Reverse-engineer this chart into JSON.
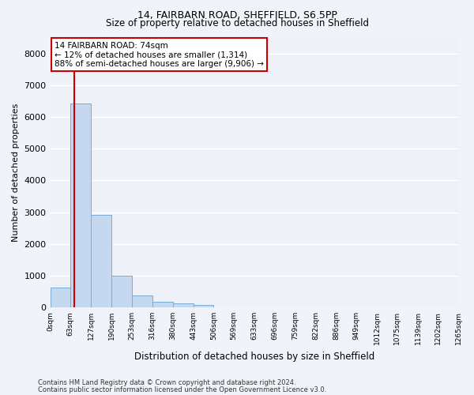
{
  "title1": "14, FAIRBARN ROAD, SHEFFIELD, S6 5PP",
  "title2": "Size of property relative to detached houses in Sheffield",
  "xlabel": "Distribution of detached houses by size in Sheffield",
  "ylabel": "Number of detached properties",
  "bin_labels": [
    "0sqm",
    "63sqm",
    "127sqm",
    "190sqm",
    "253sqm",
    "316sqm",
    "380sqm",
    "443sqm",
    "506sqm",
    "569sqm",
    "633sqm",
    "696sqm",
    "759sqm",
    "822sqm",
    "886sqm",
    "949sqm",
    "1012sqm",
    "1075sqm",
    "1139sqm",
    "1202sqm",
    "1265sqm"
  ],
  "bar_values": [
    620,
    6420,
    2920,
    1010,
    370,
    175,
    120,
    90,
    0,
    0,
    0,
    0,
    0,
    0,
    0,
    0,
    0,
    0,
    0,
    0
  ],
  "bar_color": "#c5d8f0",
  "bar_edge_color": "#7aadd4",
  "property_line_x": 74,
  "annotation_text": "14 FAIRBARN ROAD: 74sqm\n← 12% of detached houses are smaller (1,314)\n88% of semi-detached houses are larger (9,906) →",
  "footnote1": "Contains HM Land Registry data © Crown copyright and database right 2024.",
  "footnote2": "Contains public sector information licensed under the Open Government Licence v3.0.",
  "ylim": [
    0,
    8500
  ],
  "yticks": [
    0,
    1000,
    2000,
    3000,
    4000,
    5000,
    6000,
    7000,
    8000
  ],
  "background_color": "#f0f4fa",
  "plot_bg_color": "#eef2f8",
  "grid_color": "#ffffff",
  "annotation_box_color": "#ffffff",
  "annotation_border_color": "#cc0000",
  "vline_color": "#cc0000",
  "bin_edges": [
    0,
    63,
    127,
    190,
    253,
    316,
    380,
    443,
    506,
    569,
    633,
    696,
    759,
    822,
    886,
    949,
    1012,
    1075,
    1139,
    1202,
    1265
  ]
}
